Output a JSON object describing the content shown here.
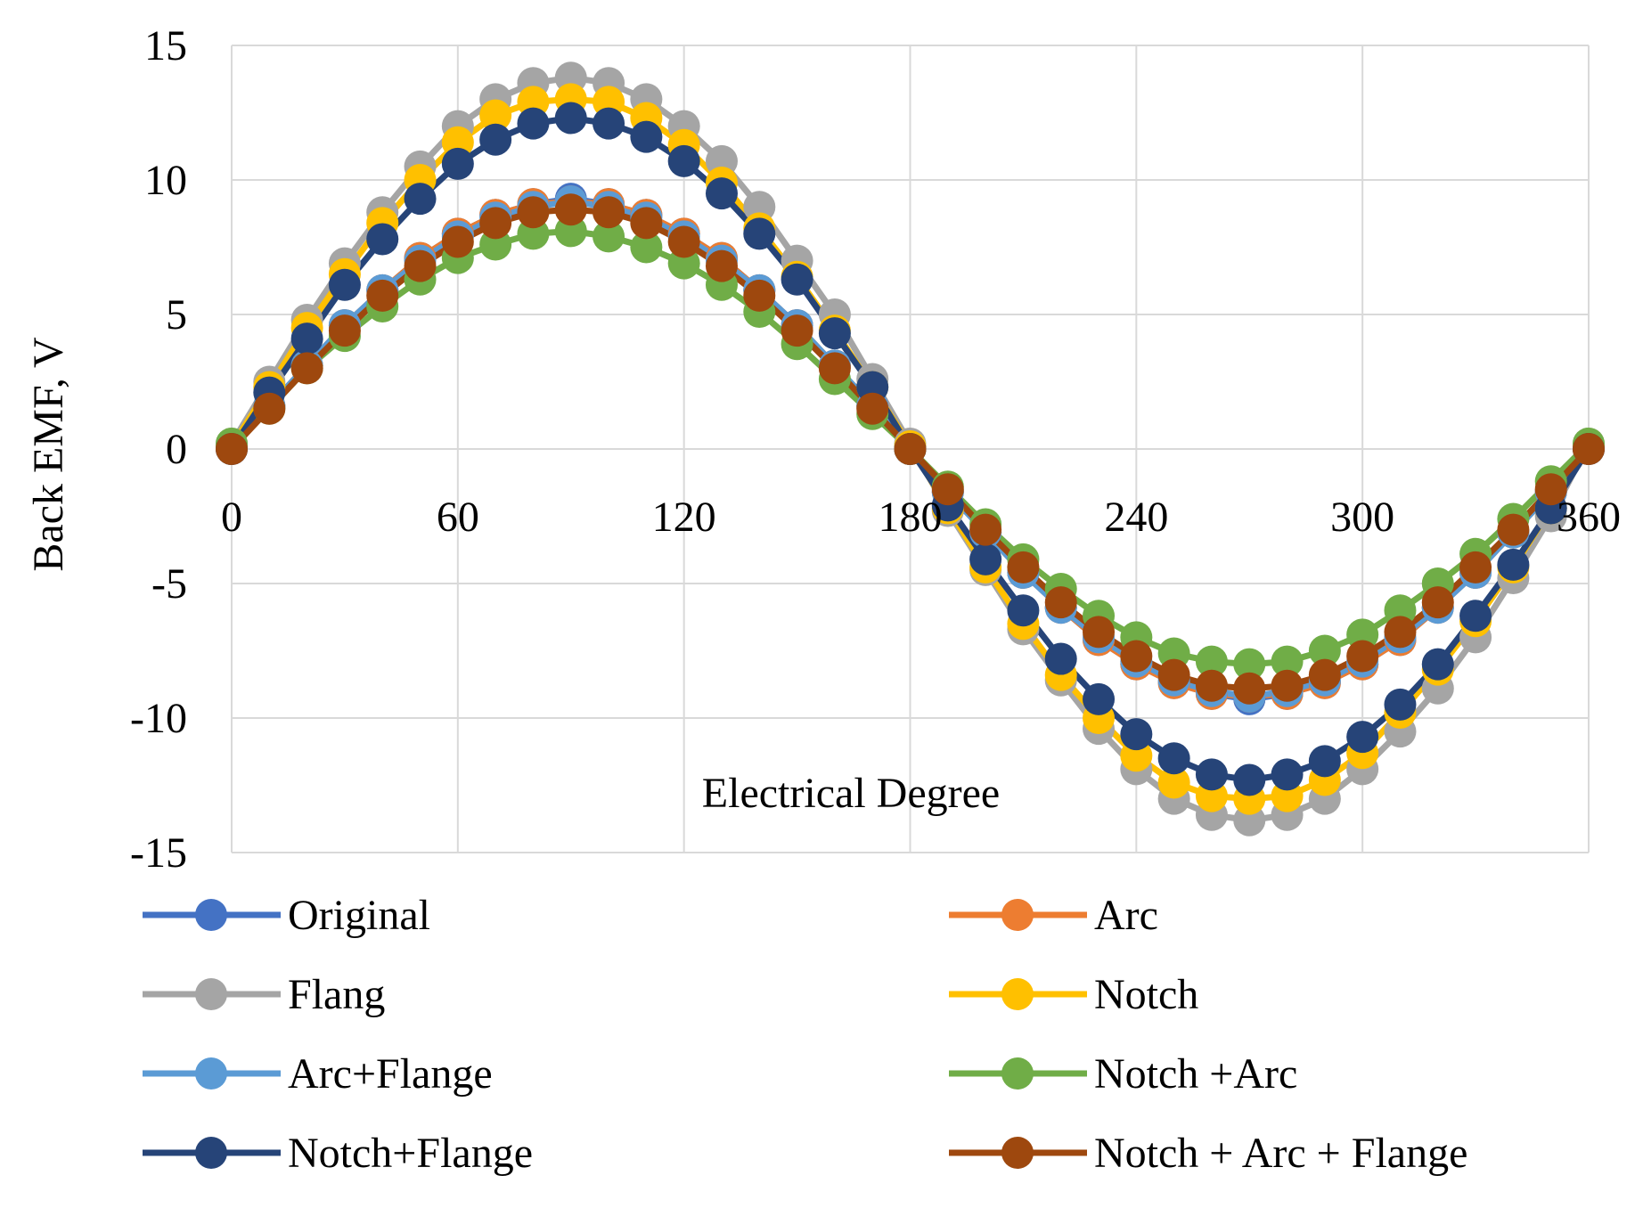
{
  "chart_data": {
    "type": "line",
    "title": "",
    "xlabel": "Electrical  Degree",
    "ylabel": "Back EMF, V",
    "xlim": [
      0,
      360
    ],
    "ylim": [
      -15,
      15
    ],
    "xticks": [
      0,
      60,
      120,
      180,
      240,
      300,
      360
    ],
    "xtick_labels": [
      "0",
      "60",
      "120",
      "180",
      "240",
      "300",
      "360"
    ],
    "yticks": [
      -15,
      -10,
      -5,
      0,
      5,
      10,
      15
    ],
    "ytick_labels": [
      "-15",
      "-10",
      "-5",
      "0",
      "5",
      "10",
      "15"
    ],
    "grid": true,
    "legend_position": "bottom",
    "x": [
      0,
      10,
      20,
      30,
      40,
      50,
      60,
      70,
      80,
      90,
      100,
      110,
      120,
      130,
      140,
      150,
      160,
      170,
      180,
      190,
      200,
      210,
      220,
      230,
      240,
      250,
      260,
      270,
      280,
      290,
      300,
      310,
      320,
      330,
      340,
      350,
      360
    ],
    "series": [
      {
        "name": "Original",
        "color": "#4472C4",
        "values": [
          0,
          1.6,
          3.1,
          4.6,
          5.9,
          7.1,
          8.0,
          8.7,
          9.1,
          9.3,
          9.1,
          8.7,
          8.0,
          7.1,
          5.9,
          4.6,
          3.1,
          1.6,
          0,
          -1.6,
          -3.1,
          -4.6,
          -5.9,
          -7.1,
          -8.0,
          -8.7,
          -9.1,
          -9.3,
          -9.1,
          -8.7,
          -8.0,
          -7.1,
          -5.9,
          -4.6,
          -3.1,
          -1.6,
          0
        ]
      },
      {
        "name": "Arc",
        "color": "#ED7D31",
        "values": [
          0,
          1.6,
          3.1,
          4.6,
          5.9,
          7.1,
          8.0,
          8.7,
          9.1,
          9.2,
          9.1,
          8.7,
          8.0,
          7.1,
          5.9,
          4.6,
          3.1,
          1.6,
          0,
          -1.6,
          -3.1,
          -4.6,
          -5.9,
          -7.1,
          -8.0,
          -8.7,
          -9.1,
          -9.2,
          -9.1,
          -8.7,
          -8.0,
          -7.1,
          -5.9,
          -4.6,
          -3.1,
          -1.6,
          0
        ]
      },
      {
        "name": "Flang",
        "color": "#A5A5A5",
        "values": [
          0.2,
          2.5,
          4.8,
          6.9,
          8.8,
          10.5,
          12.0,
          13.0,
          13.6,
          13.8,
          13.6,
          13.0,
          12.0,
          10.7,
          9.0,
          7.0,
          5.0,
          2.6,
          0.2,
          -2.3,
          -4.5,
          -6.7,
          -8.6,
          -10.4,
          -11.9,
          -13.0,
          -13.6,
          -13.8,
          -13.6,
          -13.0,
          -11.9,
          -10.5,
          -8.9,
          -7.0,
          -4.8,
          -2.5,
          0.2
        ]
      },
      {
        "name": "Notch",
        "color": "#FFC000",
        "values": [
          0.1,
          2.3,
          4.5,
          6.5,
          8.4,
          10.0,
          11.4,
          12.4,
          12.9,
          13.0,
          12.9,
          12.3,
          11.3,
          9.9,
          8.2,
          6.4,
          4.4,
          2.3,
          0.1,
          -2.2,
          -4.4,
          -6.5,
          -8.4,
          -10.0,
          -11.4,
          -12.4,
          -12.9,
          -13.0,
          -12.9,
          -12.3,
          -11.3,
          -9.8,
          -8.2,
          -6.4,
          -4.4,
          -2.2,
          0.1
        ]
      },
      {
        "name": "Arc+Flange",
        "color": "#5B9BD5",
        "values": [
          0,
          1.6,
          3.1,
          4.6,
          5.9,
          7.0,
          7.9,
          8.6,
          9.0,
          9.2,
          9.0,
          8.6,
          7.9,
          7.0,
          5.9,
          4.6,
          3.1,
          1.6,
          0,
          -1.6,
          -3.1,
          -4.6,
          -5.9,
          -7.0,
          -7.9,
          -8.6,
          -9.0,
          -9.2,
          -9.0,
          -8.6,
          -7.9,
          -7.0,
          -5.9,
          -4.6,
          -3.1,
          -1.6,
          0
        ]
      },
      {
        "name": "Notch +Arc",
        "color": "#70AD47",
        "values": [
          0.2,
          1.5,
          3.0,
          4.2,
          5.3,
          6.3,
          7.1,
          7.6,
          8.0,
          8.1,
          7.9,
          7.5,
          6.9,
          6.1,
          5.1,
          3.9,
          2.6,
          1.3,
          0,
          -1.4,
          -2.8,
          -4.1,
          -5.2,
          -6.2,
          -7.0,
          -7.6,
          -7.9,
          -8.0,
          -7.9,
          -7.5,
          -6.9,
          -6.0,
          -5.0,
          -3.9,
          -2.6,
          -1.2,
          0.2
        ]
      },
      {
        "name": "Notch+Flange",
        "color": "#264478",
        "values": [
          0,
          2.1,
          4.1,
          6.1,
          7.8,
          9.3,
          10.6,
          11.5,
          12.1,
          12.3,
          12.1,
          11.6,
          10.7,
          9.5,
          8.0,
          6.3,
          4.3,
          2.3,
          0,
          -2.1,
          -4.1,
          -6.0,
          -7.8,
          -9.3,
          -10.6,
          -11.5,
          -12.1,
          -12.3,
          -12.1,
          -11.6,
          -10.7,
          -9.5,
          -8.0,
          -6.2,
          -4.3,
          -2.2,
          0
        ]
      },
      {
        "name": "Notch + Arc + Flange",
        "color": "#9E480E",
        "values": [
          0,
          1.5,
          3.0,
          4.4,
          5.7,
          6.8,
          7.7,
          8.4,
          8.8,
          8.9,
          8.8,
          8.4,
          7.7,
          6.8,
          5.7,
          4.4,
          3.0,
          1.5,
          0,
          -1.5,
          -3.0,
          -4.4,
          -5.7,
          -6.8,
          -7.7,
          -8.4,
          -8.8,
          -8.9,
          -8.8,
          -8.4,
          -7.7,
          -6.8,
          -5.7,
          -4.4,
          -3.0,
          -1.5,
          0
        ]
      }
    ]
  }
}
